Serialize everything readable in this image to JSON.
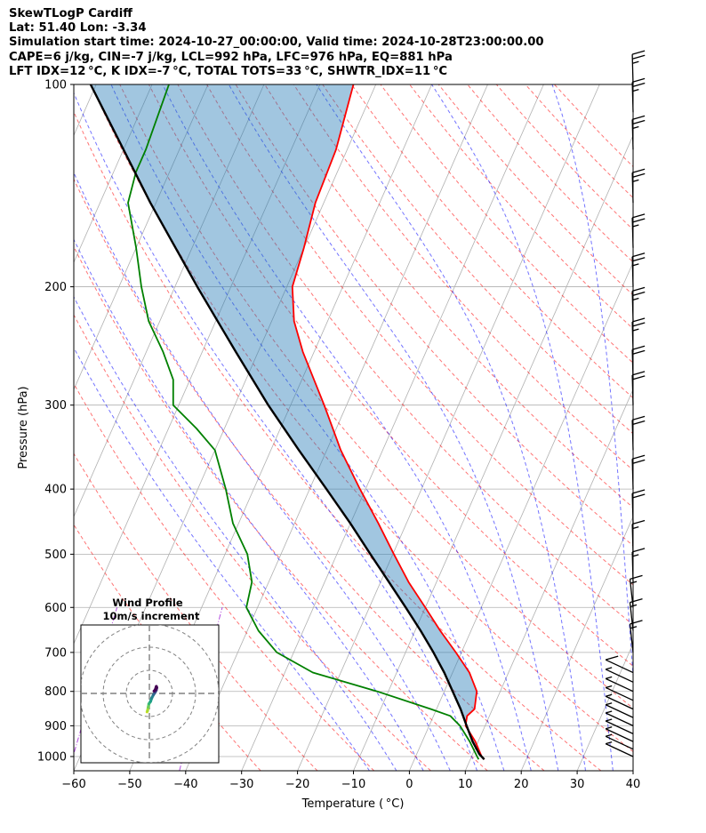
{
  "header": {
    "title": "SkewTLogP Cardiff",
    "location": "Lat: 51.40   Lon: -3.34",
    "times": "Simulation start time: 2024-10-27_00:00:00, Valid time: 2024-10-28T23:00:00.00",
    "params": "CAPE=6 j/kg, CIN=-7 j/kg, LCL=992 hPa, LFC=976 hPa, EQ=881 hPa",
    "indices": "LFT IDX=12 °C, K IDX=-7 °C, TOTAL TOTS=33 °C, SHWTR_IDX=11 °C"
  },
  "chart_data": {
    "type": "line",
    "subtype": "skewT-logP",
    "xlabel": "Temperature ($^\\circ$C)",
    "xlabel_text": "Temperature ( °C)",
    "ylabel": "Pressure (hPa)",
    "xlim": [
      -60,
      40
    ],
    "ylim": [
      1050,
      100
    ],
    "y_scale": "log",
    "x_ticks": [
      -60,
      -50,
      -40,
      -30,
      -20,
      -10,
      0,
      10,
      20,
      30,
      40
    ],
    "x_tick_labels": [
      "−60",
      "−50",
      "−40",
      "−30",
      "−20",
      "−10",
      "0",
      "10",
      "20",
      "30",
      "40"
    ],
    "y_ticks": [
      1000,
      900,
      800,
      700,
      600,
      500,
      400,
      300,
      200,
      100
    ],
    "grid": true,
    "series": [
      {
        "name": "Temperature",
        "color": "#ff0000",
        "pressure": [
          1010,
          1000,
          950,
          900,
          870,
          850,
          800,
          750,
          700,
          650,
          600,
          550,
          500,
          450,
          400,
          350,
          300,
          250,
          225,
          200,
          175,
          150,
          125,
          100
        ],
        "values": [
          12.5,
          11.8,
          9.5,
          6.5,
          6.0,
          6.8,
          5.8,
          3.0,
          -1.0,
          -5.5,
          -10.0,
          -15.0,
          -19.8,
          -25.0,
          -31.0,
          -37.5,
          -44.0,
          -52.0,
          -56.0,
          -59.0,
          -60.0,
          -61.5,
          -62.0,
          -64.0
        ]
      },
      {
        "name": "Dewpoint",
        "color": "#008000",
        "pressure": [
          1010,
          1000,
          950,
          900,
          870,
          850,
          800,
          750,
          700,
          650,
          600,
          550,
          500,
          450,
          400,
          350,
          325,
          300,
          275,
          250,
          225,
          200,
          175,
          150,
          135,
          125,
          100
        ],
        "values": [
          11.5,
          11.0,
          8.5,
          5.5,
          3.0,
          -1.0,
          -12.0,
          -25.0,
          -33.0,
          -38.0,
          -42.0,
          -43.0,
          -46.0,
          -51.0,
          -55.0,
          -60.0,
          -65.0,
          -71.0,
          -73.0,
          -77.0,
          -82.0,
          -86.0,
          -90.0,
          -95.0,
          -96.0,
          -96.0,
          -97.0
        ]
      },
      {
        "name": "Parcel profile",
        "color": "#000000",
        "pressure": [
          1010,
          992,
          950,
          900,
          850,
          800,
          750,
          700,
          650,
          600,
          550,
          500,
          450,
          400,
          350,
          300,
          250,
          200,
          150,
          100
        ],
        "values": [
          12.5,
          11.2,
          9.0,
          6.7,
          4.3,
          1.5,
          -1.5,
          -5.0,
          -9.0,
          -13.5,
          -18.5,
          -24.0,
          -30.0,
          -37.0,
          -45.0,
          -54.0,
          -64.0,
          -76.0,
          -91.0,
          -111.0
        ]
      }
    ],
    "shading": {
      "name": "CAPE",
      "color": "#1f77b4",
      "between": [
        "Temperature",
        "Parcel profile"
      ]
    },
    "dry_adiabats_color": "#ff0000",
    "moist_adiabats_color": "#0000ff",
    "mixing_ratio_color": "#9400d3",
    "wind_barbs": {
      "pressure": [
        1000,
        975,
        950,
        925,
        900,
        875,
        850,
        825,
        800,
        775,
        750,
        700,
        650,
        600,
        550,
        500,
        450,
        400,
        350,
        300,
        275,
        250,
        225,
        200,
        175,
        150,
        125,
        110,
        100
      ],
      "speed_ms": [
        5,
        4,
        4,
        4,
        5,
        4,
        4,
        3,
        3,
        4,
        6,
        8,
        8,
        8,
        9,
        10,
        11,
        11,
        12,
        12,
        12,
        13,
        13,
        13,
        14,
        14,
        14,
        14,
        14
      ]
    },
    "hodograph": {
      "title_line1": "Wind Profile",
      "title_line2": "10m/s increment",
      "ring_increment_ms": 10,
      "u": [
        -1.0,
        -0.8,
        -0.5,
        -0.2,
        0.5,
        1.0,
        1.8,
        2.5,
        3.0,
        3.2,
        3.0,
        2.5,
        2.0
      ],
      "v": [
        -8.0,
        -7.5,
        -6.0,
        -4.5,
        -3.5,
        -2.0,
        -0.5,
        0.5,
        1.5,
        2.5,
        3.0,
        1.5,
        1.0
      ]
    }
  }
}
